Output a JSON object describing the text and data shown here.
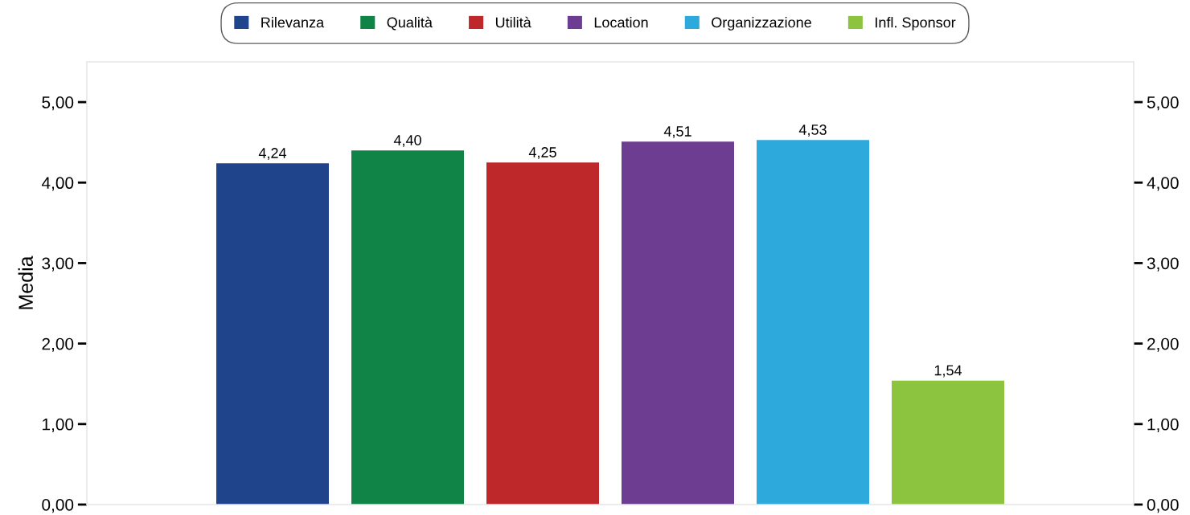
{
  "chart_data": {
    "type": "bar",
    "ylabel": "Media",
    "categories": [
      null
    ],
    "series": [
      {
        "name": "Rilevanza",
        "color": "#1f448c",
        "values": [
          4.24
        ],
        "value_labels": [
          "4,24"
        ]
      },
      {
        "name": "Qualità",
        "color": "#108446",
        "values": [
          4.4
        ],
        "value_labels": [
          "4,40"
        ]
      },
      {
        "name": "Utilità",
        "color": "#bf282b",
        "values": [
          4.25
        ],
        "value_labels": [
          "4,25"
        ]
      },
      {
        "name": "Location",
        "color": "#6d3d91",
        "values": [
          4.51
        ],
        "value_labels": [
          "4,51"
        ]
      },
      {
        "name": "Organizzazione",
        "color": "#2ea9dc",
        "values": [
          4.53
        ],
        "value_labels": [
          "4,53"
        ]
      },
      {
        "name": "Infl. Sponsor",
        "color": "#8cc43f",
        "values": [
          1.54
        ],
        "value_labels": [
          "1,54"
        ]
      }
    ],
    "ylim": [
      0,
      5.5
    ],
    "yticks": [
      {
        "value": 0,
        "label": "0,00"
      },
      {
        "value": 1,
        "label": "1,00"
      },
      {
        "value": 2,
        "label": "2,00"
      },
      {
        "value": 3,
        "label": "3,00"
      },
      {
        "value": 4,
        "label": "4,00"
      },
      {
        "value": 5,
        "label": "5,00"
      }
    ],
    "y2lim": [
      0,
      5.5
    ],
    "y2ticks": [
      {
        "value": 0,
        "label": "0,00"
      },
      {
        "value": 1,
        "label": "1,00"
      },
      {
        "value": 2,
        "label": "2,00"
      },
      {
        "value": 3,
        "label": "3,00"
      },
      {
        "value": 4,
        "label": "4,00"
      },
      {
        "value": 5,
        "label": "5,00"
      }
    ],
    "tick_labels": "y",
    "grid": false,
    "legend": "top"
  }
}
